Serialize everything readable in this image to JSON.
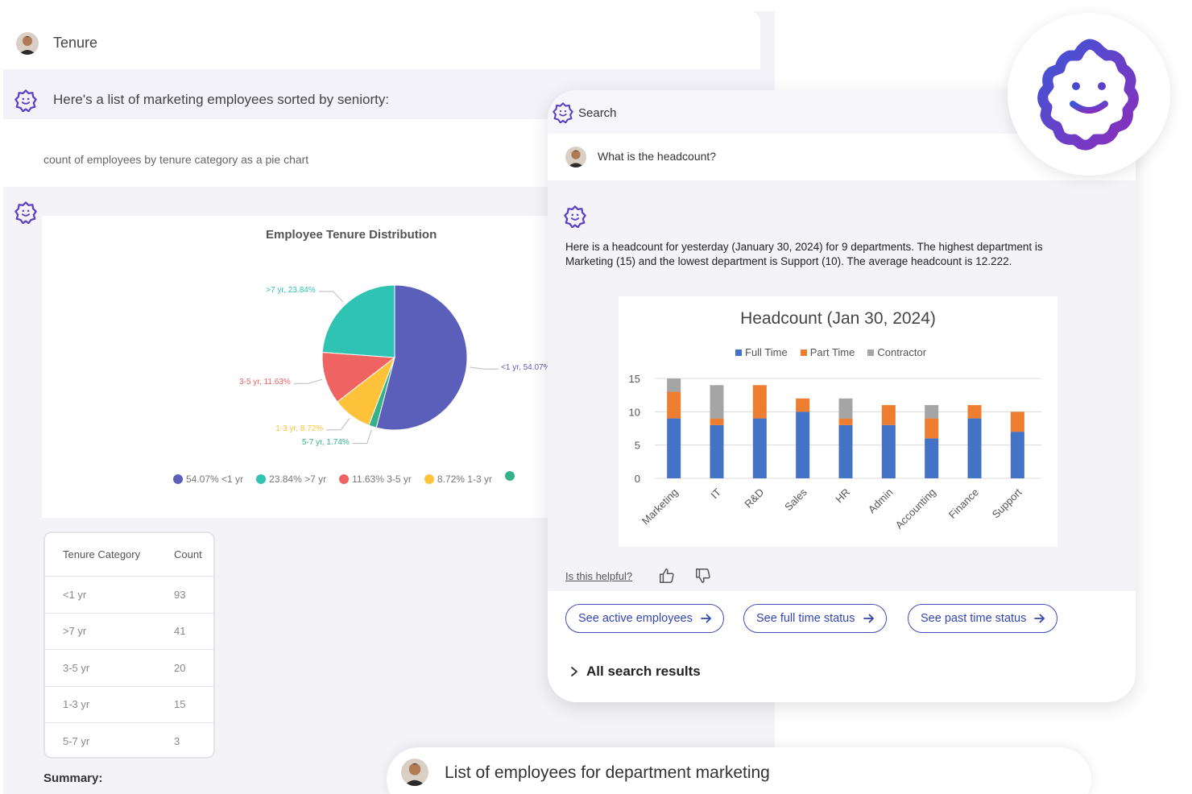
{
  "background_chat": {
    "tenure_message": "Tenure",
    "bot_intro": "Here's a list of marketing employees sorted by seniorty:",
    "user_request": "count of employees by tenure category as a pie chart",
    "summary_label": "Summary:"
  },
  "pie_chart": {
    "chart_data": {
      "type": "pie",
      "title": "Employee Tenure Distribution",
      "slices": [
        {
          "label": "<1 yr",
          "value": 54.07,
          "color": "#5b5fb9",
          "callout": "<1 yr, 54.07%",
          "legend": "54.07% <1 yr"
        },
        {
          "label": "5-7 yr",
          "value": 1.74,
          "color": "#34b38a",
          "callout": "5-7 yr, 1.74%",
          "legend": ""
        },
        {
          "label": "1-3 yr",
          "value": 8.72,
          "color": "#ffc23a",
          "callout": "1-3 yr, 8.72%",
          "legend": "8.72% 1-3 yr"
        },
        {
          "label": "3-5 yr",
          "value": 11.63,
          "color": "#ef6363",
          "callout": "3-5 yr, 11.63%",
          "legend": "11.63% 3-5 yr"
        },
        {
          "label": ">7 yr",
          "value": 23.84,
          "color": "#2fc3b4",
          "callout": ">7 yr, 23.84%",
          "legend": "23.84% >7 yr"
        }
      ],
      "legend_order": [
        0,
        4,
        3,
        2
      ]
    }
  },
  "tenure_table": {
    "headers": [
      "Tenure Category",
      "Count"
    ],
    "rows": [
      [
        "<1 yr",
        "93"
      ],
      [
        ">7 yr",
        "41"
      ],
      [
        "3-5 yr",
        "20"
      ],
      [
        "1-3 yr",
        "15"
      ],
      [
        "5-7 yr",
        "3"
      ]
    ]
  },
  "search_card": {
    "header_label": "Search",
    "question": "What is the headcount?",
    "answer": "Here is a headcount for yesterday (January 30, 2024) for 9 departments. The highest department is Marketing (15) and the lowest department is Support (10). The average headcount is 12.222.",
    "helpful_label": "Is this helpful?",
    "chips": [
      {
        "label": "See active employees"
      },
      {
        "label": "See full time status"
      },
      {
        "label": "See past time status"
      }
    ],
    "all_results_label": "All search results"
  },
  "bar_chart": {
    "chart_data": {
      "type": "bar",
      "stacked": true,
      "title": "Headcount (Jan 30, 2024)",
      "categories": [
        "Marketing",
        "IT",
        "R&D",
        "Sales",
        "HR",
        "Admin",
        "Accounting",
        "Finance",
        "Support"
      ],
      "series": [
        {
          "name": "Full Time",
          "color": "#4472c4",
          "values": [
            9,
            8,
            9,
            10,
            8,
            8,
            6,
            9,
            7
          ]
        },
        {
          "name": "Part Time",
          "color": "#ed7d31",
          "values": [
            4,
            1,
            5,
            2,
            1,
            3,
            3,
            2,
            3
          ]
        },
        {
          "name": "Contractor",
          "color": "#a5a5a5",
          "values": [
            2,
            5,
            0,
            0,
            3,
            0,
            2,
            0,
            0
          ]
        }
      ],
      "ylim": [
        0,
        15
      ],
      "yticks": [
        "0",
        "5",
        "10",
        "15"
      ],
      "grid": true,
      "legend_position": "top"
    }
  },
  "bottom_bar": {
    "text": "List of employees for department marketing"
  },
  "colors": {
    "accent": "#3446b0",
    "brand_purple": "#6a3fc8"
  }
}
